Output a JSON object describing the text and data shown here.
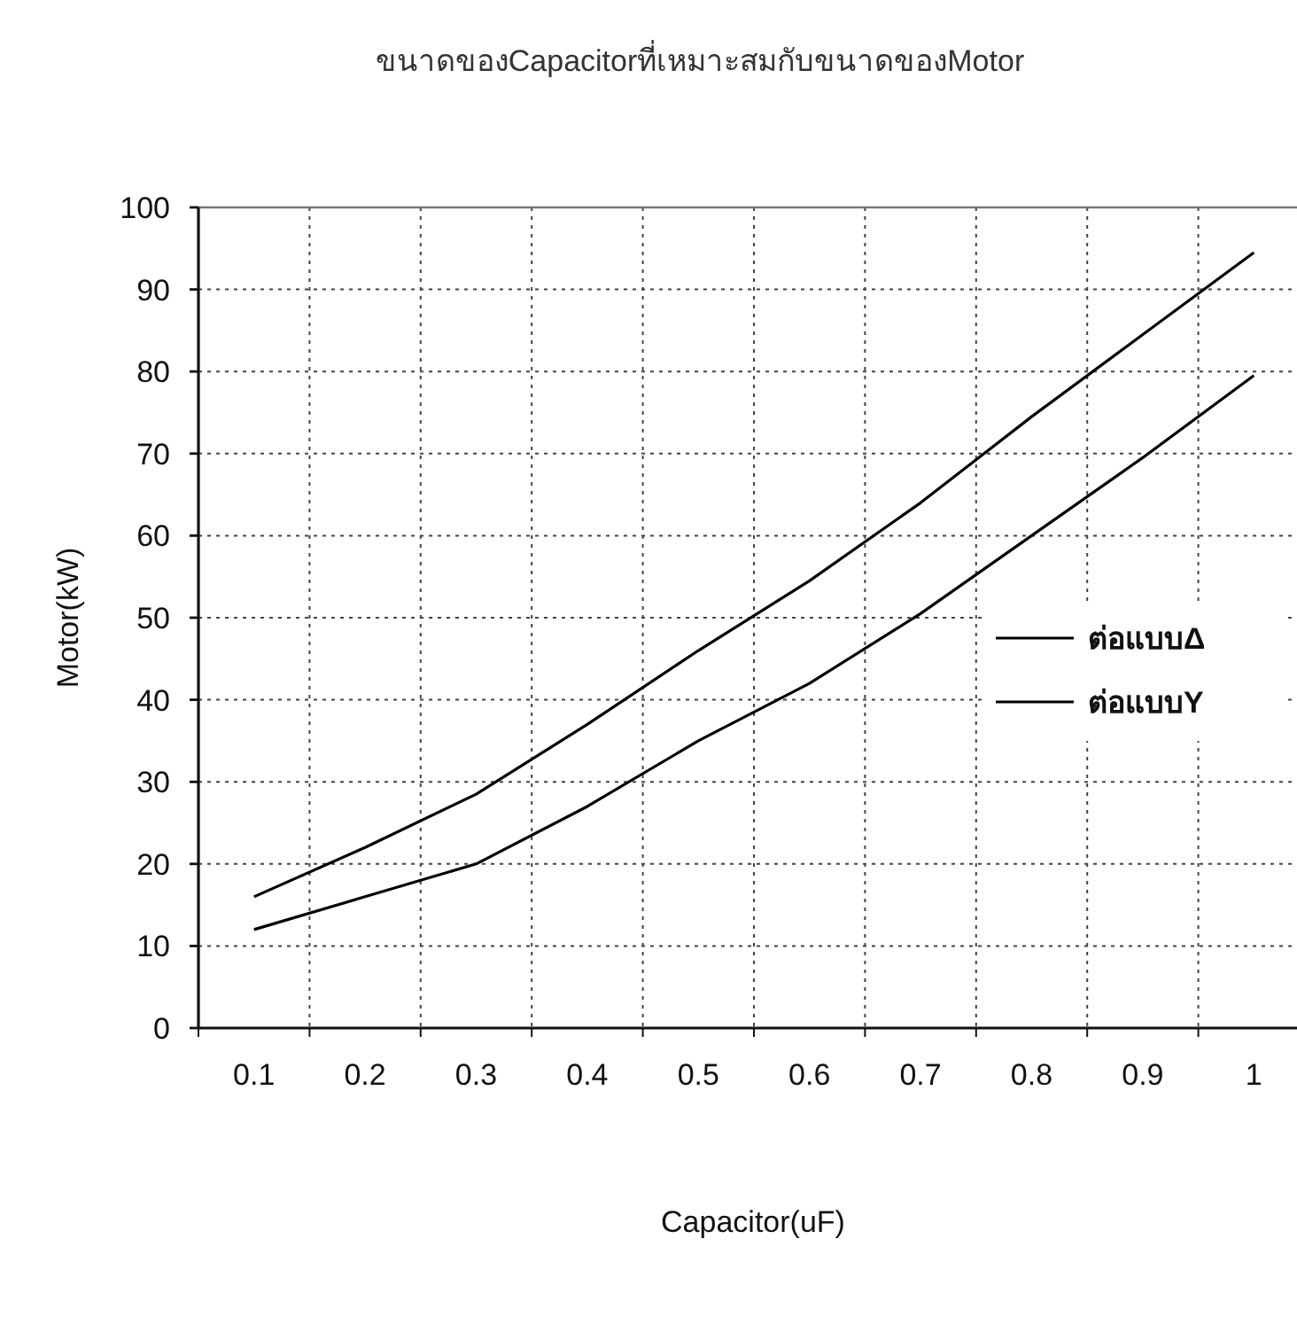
{
  "chart_data": {
    "type": "line",
    "title": "ขนาดของCapacitorที่เหมาะสมกับขนาดของMotor",
    "xlabel": "Capacitor(uF)",
    "ylabel": "Motor(kW)",
    "categories": [
      "0.1",
      "0.2",
      "0.3",
      "0.4",
      "0.5",
      "0.6",
      "0.7",
      "0.8",
      "0.9",
      "1"
    ],
    "series": [
      {
        "name": "ต่อแบบΔ",
        "color": "#000000",
        "values": [
          16,
          22,
          28.5,
          37,
          46,
          54.5,
          64,
          74.5,
          84.5,
          94.5
        ]
      },
      {
        "name": "ต่อแบบY",
        "color": "#000000",
        "values": [
          12,
          16,
          20,
          27,
          35,
          42,
          50.5,
          60,
          69.5,
          79.5
        ]
      }
    ],
    "ylim": [
      0,
      100
    ],
    "yticks": [
      0,
      10,
      20,
      30,
      40,
      50,
      60,
      70,
      80,
      90,
      100
    ],
    "grid": true,
    "legend": "right",
    "marker": "none",
    "line_style": "solid"
  }
}
